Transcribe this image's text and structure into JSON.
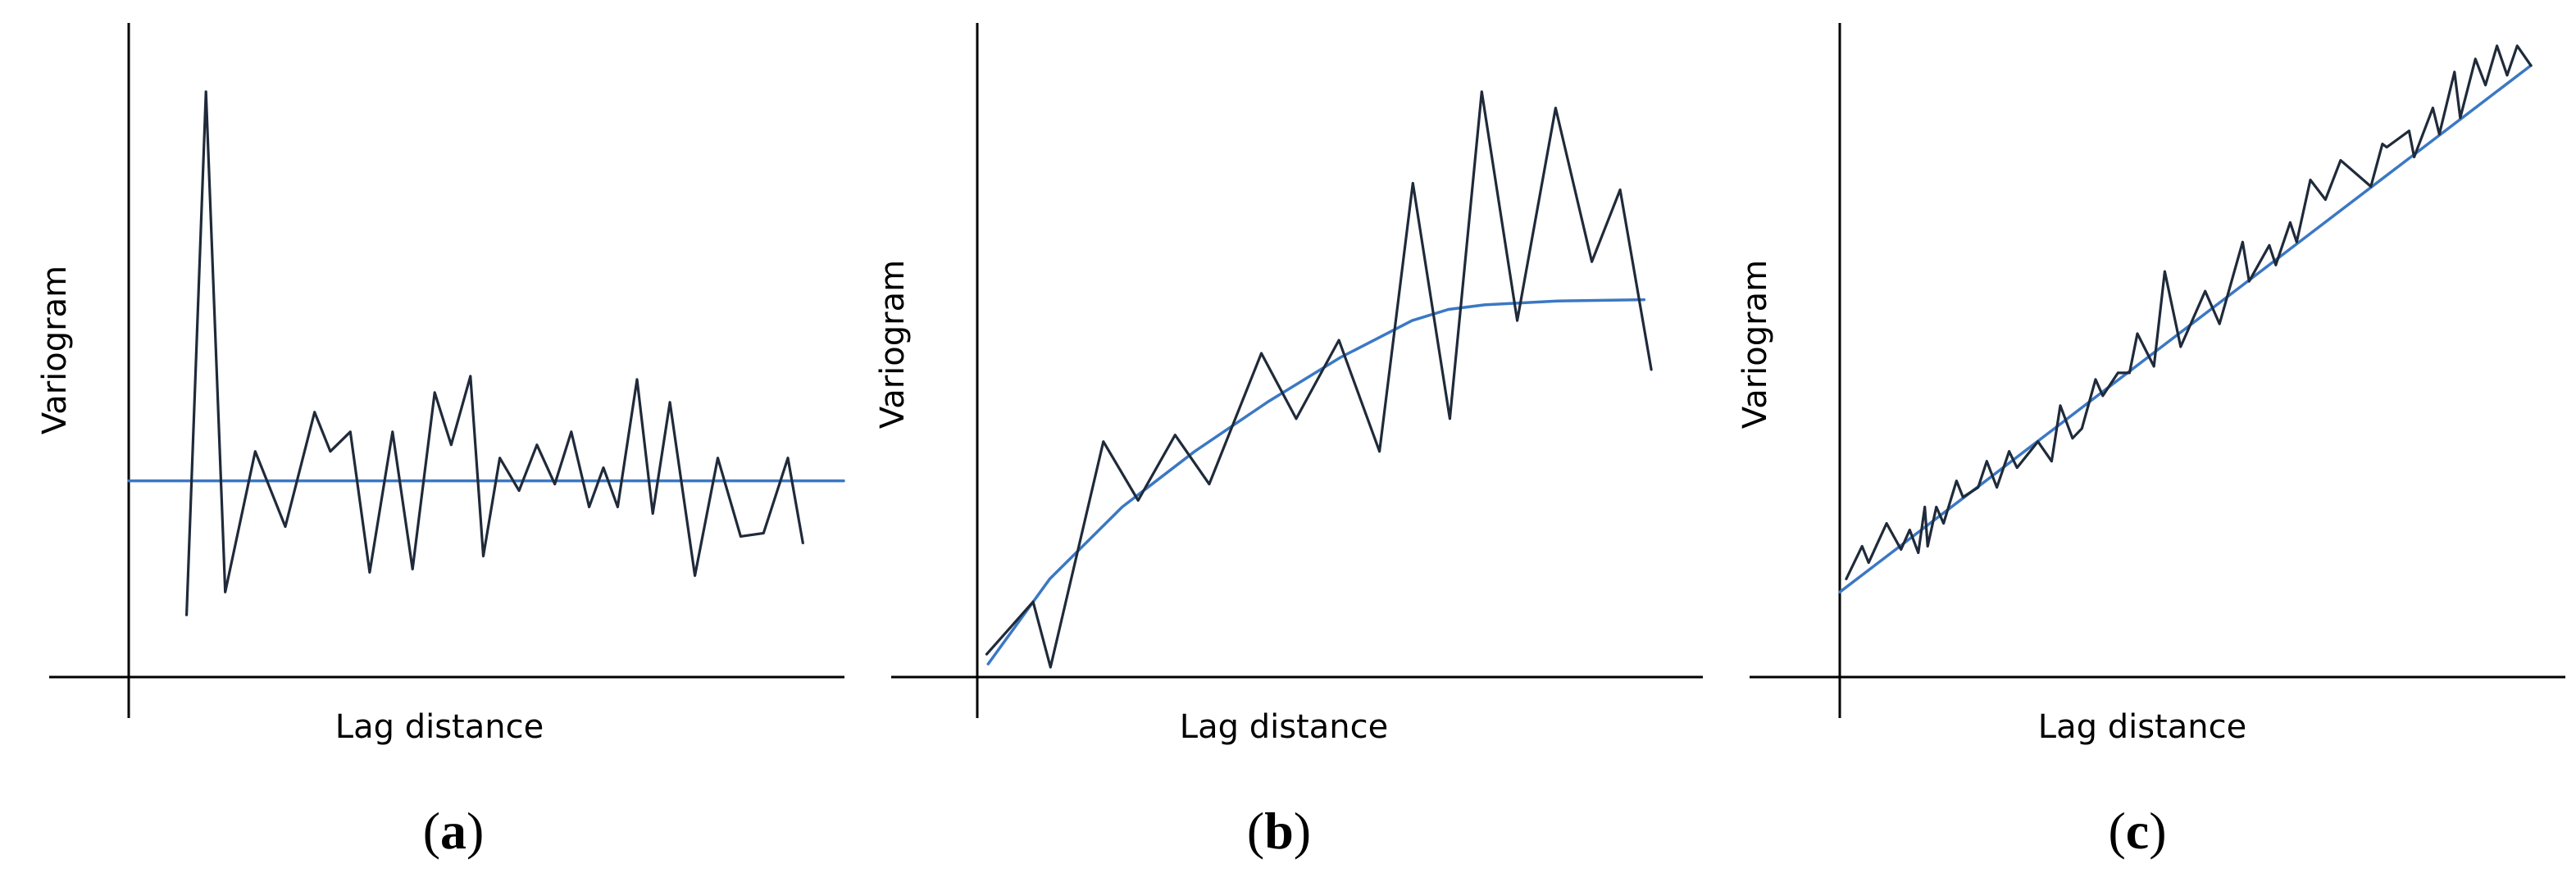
{
  "colors": {
    "data_line": "#1f2a3a",
    "model_line": "#3b78c4",
    "axis": "#000000"
  },
  "chart_data": [
    {
      "type": "line",
      "panel_label": "a",
      "xlabel": "Lag distance",
      "ylabel": "Variogram",
      "xlim": [
        0,
        100
      ],
      "ylim": [
        0,
        100
      ],
      "grid": false,
      "model": "constant",
      "series": [
        {
          "role": "experimental",
          "x": [
            8.1,
            10.8,
            13.5,
            17.7,
            21.9,
            26.0,
            28.2,
            31.0,
            33.7,
            36.9,
            39.7,
            42.8,
            45.1,
            47.8,
            49.6,
            51.9,
            54.6,
            57.1,
            59.6,
            61.9,
            64.4,
            66.4,
            68.4,
            71.1,
            73.3,
            75.7,
            79.2,
            82.4,
            85.6,
            88.8,
            92.2,
            94.3
          ],
          "y": [
            9.5,
            89.5,
            13.0,
            34.5,
            23.0,
            40.5,
            34.5,
            37.5,
            16.0,
            37.5,
            16.5,
            43.5,
            35.5,
            46.0,
            18.5,
            33.5,
            28.5,
            35.5,
            29.5,
            37.5,
            26.0,
            32.0,
            26.0,
            45.5,
            25.0,
            42.0,
            15.5,
            33.5,
            21.5,
            22.0,
            33.5,
            20.5
          ]
        },
        {
          "role": "model",
          "x": [
            0,
            100
          ],
          "y": [
            30.0,
            30.0
          ]
        }
      ]
    },
    {
      "type": "line",
      "panel_label": "b",
      "xlabel": "Lag distance",
      "ylabel": "Variogram",
      "xlim": [
        0,
        100
      ],
      "ylim": [
        0,
        100
      ],
      "grid": false,
      "model": "spherical",
      "series": [
        {
          "role": "experimental",
          "x": [
            1.3,
            7.7,
            10.1,
            17.4,
            22.2,
            27.3,
            32.0,
            39.2,
            44.0,
            49.9,
            55.5,
            60.1,
            65.2,
            69.6,
            74.5,
            79.8,
            84.8,
            88.7,
            93.0
          ],
          "y": [
            3.5,
            11.5,
            1.5,
            36.0,
            27.0,
            37.0,
            29.5,
            49.5,
            39.5,
            51.5,
            34.5,
            75.5,
            39.5,
            89.5,
            54.5,
            87.0,
            63.5,
            74.5,
            47.0
          ]
        },
        {
          "role": "model",
          "x": [
            1.5,
            10.0,
            20.0,
            30.0,
            40.0,
            50.0,
            60.0,
            65.0,
            70.0,
            80.0,
            92.0
          ],
          "y": [
            2.0,
            15.0,
            26.0,
            34.5,
            42.0,
            48.8,
            54.5,
            56.2,
            56.9,
            57.5,
            57.7
          ]
        }
      ]
    },
    {
      "type": "line",
      "panel_label": "c",
      "xlabel": "Lag distance",
      "ylabel": "Variogram",
      "xlim": [
        0,
        100
      ],
      "ylim": [
        0,
        100
      ],
      "grid": false,
      "model": "linear",
      "series": [
        {
          "role": "experimental",
          "x": [
            0.9,
            3.1,
            4.0,
            6.5,
            8.5,
            9.7,
            10.9,
            11.8,
            12.2,
            13.4,
            14.4,
            16.2,
            17.1,
            19.2,
            20.4,
            21.8,
            23.5,
            24.6,
            27.5,
            29.4,
            30.6,
            32.3,
            33.6,
            35.5,
            36.5,
            38.6,
            40.2,
            41.3,
            43.6,
            45.1,
            47.3,
            50.7,
            52.7,
            55.9,
            56.8,
            59.6,
            60.5,
            62.5,
            63.4,
            65.3,
            67.4,
            69.5,
            73.7,
            75.3,
            75.9,
            79.0,
            79.7,
            82.3,
            83.2,
            85.3,
            86.1,
            88.2,
            89.6,
            91.2,
            92.6,
            94.0,
            95.9
          ],
          "y": [
            15.0,
            20.0,
            17.5,
            23.5,
            19.5,
            22.5,
            19.0,
            26.0,
            20.0,
            26.0,
            23.5,
            30.0,
            27.5,
            29.0,
            33.0,
            29.0,
            34.5,
            32.0,
            36.0,
            33.0,
            41.5,
            36.5,
            38.0,
            45.5,
            43.0,
            46.5,
            46.5,
            52.5,
            47.5,
            62.0,
            50.5,
            59.0,
            54.0,
            66.5,
            60.5,
            66.0,
            63.0,
            69.5,
            66.5,
            76.0,
            73.0,
            79.0,
            75.0,
            81.5,
            81.0,
            83.5,
            79.5,
            87.0,
            83.0,
            92.5,
            85.5,
            94.5,
            90.5,
            96.5,
            92.0,
            96.5,
            93.5
          ]
        },
        {
          "role": "model",
          "x": [
            0,
            95.9
          ],
          "y": [
            13.0,
            93.5
          ]
        }
      ]
    }
  ]
}
